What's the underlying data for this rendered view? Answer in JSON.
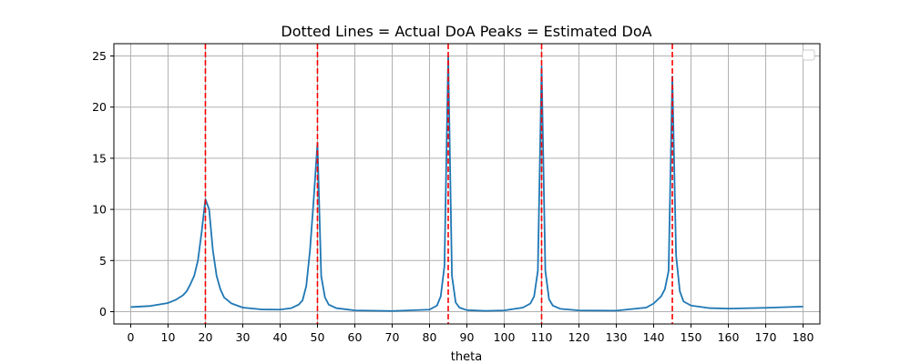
{
  "chart_data": {
    "type": "line",
    "title": "Dotted Lines = Actual DoA    Peaks = Estimated DoA",
    "xlabel": "theta",
    "ylabel": "",
    "xlim": [
      -4.5,
      184.5
    ],
    "ylim": [
      -1.2,
      26.2
    ],
    "xticks": [
      0,
      10,
      20,
      30,
      40,
      50,
      60,
      70,
      80,
      90,
      100,
      110,
      120,
      130,
      140,
      150,
      160,
      170,
      180
    ],
    "yticks": [
      0,
      5,
      10,
      15,
      20,
      25
    ],
    "grid": true,
    "legend": "top-right (empty)",
    "colors": {
      "series": "#1f77b4",
      "actual_doa": "#ff0000",
      "grid": "#b0b0b0"
    },
    "actual_doa": [
      20,
      50,
      85,
      110,
      145
    ],
    "series": [
      {
        "x": [
          0,
          5,
          10,
          12,
          14,
          15,
          16,
          17,
          18,
          19,
          20,
          21,
          22,
          23,
          24,
          25,
          27,
          30,
          35,
          40,
          43,
          45,
          46,
          47,
          48,
          49,
          50,
          51,
          52,
          53,
          55,
          60,
          70,
          80,
          82,
          83,
          84,
          85,
          86,
          87,
          88,
          90,
          95,
          100,
          105,
          107,
          108,
          109,
          110,
          111,
          112,
          113,
          115,
          120,
          130,
          138,
          140,
          142,
          143,
          144,
          145,
          146,
          147,
          148,
          150,
          155,
          160,
          170,
          180
        ],
        "y": [
          0.45,
          0.55,
          0.85,
          1.15,
          1.6,
          2.0,
          2.7,
          3.5,
          5.0,
          7.8,
          11.0,
          10.0,
          6.0,
          3.5,
          2.2,
          1.4,
          0.8,
          0.4,
          0.22,
          0.2,
          0.35,
          0.7,
          1.1,
          2.5,
          6.0,
          11.0,
          16.5,
          3.5,
          1.4,
          0.7,
          0.35,
          0.12,
          0.07,
          0.2,
          0.6,
          1.5,
          4.5,
          25.0,
          3.5,
          0.9,
          0.4,
          0.15,
          0.08,
          0.12,
          0.4,
          0.8,
          1.5,
          4.0,
          24.0,
          4.0,
          1.2,
          0.6,
          0.28,
          0.12,
          0.1,
          0.4,
          0.8,
          1.5,
          2.2,
          4.0,
          23.0,
          5.5,
          2.0,
          1.0,
          0.6,
          0.35,
          0.3,
          0.38,
          0.5
        ]
      }
    ]
  }
}
